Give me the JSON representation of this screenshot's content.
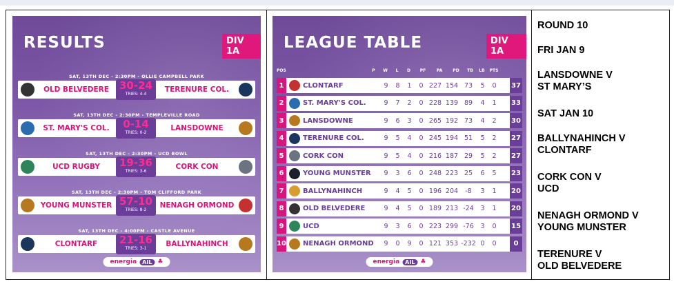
{
  "results": {
    "title": "RESULTS",
    "division": "DIV 1A",
    "matches": [
      {
        "header": "SAT, 13TH DEC - 2:30PM - OLLIE CAMPBELL PARK",
        "home": "OLD BELVEDERE",
        "score": "30-24",
        "tries": "TRIES: 4-4",
        "away": "TERENURE COL."
      },
      {
        "header": "SAT, 13TH DEC - 2:30PM - TEMPLEVILLE ROAD",
        "home": "ST. MARY'S COL.",
        "score": "0-14",
        "tries": "TRIES: 0-2",
        "away": "LANSDOWNE"
      },
      {
        "header": "SAT, 13TH DEC - 2:30PM - UCD BOWL",
        "home": "UCD RUGBY",
        "score": "19-36",
        "tries": "TRIES: 3-6",
        "away": "CORK CON"
      },
      {
        "header": "SAT, 13TH DEC - 2:30PM - TOM CLIFFORD PARK",
        "home": "YOUNG MUNSTER",
        "score": "57-10",
        "tries": "TRIES: 8-2",
        "away": "NENAGH ORMOND"
      },
      {
        "header": "SAT, 13TH DEC - 4:00PM - CASTLE AVENUE",
        "home": "CLONTARF",
        "score": "21-16",
        "tries": "TRIES: 3-1",
        "away": "BALLYNAHINCH"
      }
    ],
    "sponsor": {
      "brand": "energia",
      "league": "AIL"
    }
  },
  "league": {
    "title": "LEAGUE TABLE",
    "division": "DIV 1A",
    "headers": [
      "POS",
      "P",
      "W",
      "L",
      "D",
      "PF",
      "PA",
      "PD",
      "TB",
      "LB",
      "PTS"
    ],
    "rows": [
      {
        "pos": "1",
        "team": "CLONTARF",
        "p": "9",
        "w": "8",
        "l": "1",
        "d": "0",
        "pf": "227",
        "pa": "154",
        "pd": "73",
        "tb": "5",
        "lb": "0",
        "pts": "37"
      },
      {
        "pos": "2",
        "team": "ST. MARY'S COL.",
        "p": "9",
        "w": "7",
        "l": "2",
        "d": "0",
        "pf": "228",
        "pa": "139",
        "pd": "89",
        "tb": "4",
        "lb": "1",
        "pts": "33"
      },
      {
        "pos": "3",
        "team": "LANSDOWNE",
        "p": "9",
        "w": "6",
        "l": "3",
        "d": "0",
        "pf": "265",
        "pa": "192",
        "pd": "73",
        "tb": "4",
        "lb": "2",
        "pts": "30"
      },
      {
        "pos": "4",
        "team": "TERENURE COL.",
        "p": "9",
        "w": "5",
        "l": "4",
        "d": "0",
        "pf": "245",
        "pa": "194",
        "pd": "51",
        "tb": "5",
        "lb": "2",
        "pts": "27"
      },
      {
        "pos": "5",
        "team": "CORK CON",
        "p": "9",
        "w": "5",
        "l": "4",
        "d": "0",
        "pf": "216",
        "pa": "187",
        "pd": "29",
        "tb": "5",
        "lb": "2",
        "pts": "27"
      },
      {
        "pos": "6",
        "team": "YOUNG MUNSTER",
        "p": "9",
        "w": "3",
        "l": "6",
        "d": "0",
        "pf": "248",
        "pa": "223",
        "pd": "25",
        "tb": "6",
        "lb": "5",
        "pts": "23"
      },
      {
        "pos": "7",
        "team": "BALLYNAHINCH",
        "p": "9",
        "w": "4",
        "l": "5",
        "d": "0",
        "pf": "196",
        "pa": "204",
        "pd": "-8",
        "tb": "3",
        "lb": "1",
        "pts": "20"
      },
      {
        "pos": "8",
        "team": "OLD BELVEDERE",
        "p": "9",
        "w": "4",
        "l": "5",
        "d": "0",
        "pf": "189",
        "pa": "213",
        "pd": "-24",
        "tb": "3",
        "lb": "1",
        "pts": "20"
      },
      {
        "pos": "9",
        "team": "UCD",
        "p": "9",
        "w": "3",
        "l": "6",
        "d": "0",
        "pf": "223",
        "pa": "299",
        "pd": "-76",
        "tb": "3",
        "lb": "0",
        "pts": "15"
      },
      {
        "pos": "10",
        "team": "NENAGH ORMOND",
        "p": "9",
        "w": "0",
        "l": "9",
        "d": "0",
        "pf": "121",
        "pa": "353",
        "pd": "-232",
        "tb": "0",
        "lb": "0",
        "pts": "0"
      }
    ],
    "sponsor": {
      "brand": "energia",
      "league": "AIL"
    }
  },
  "fixtures": [
    {
      "line1": "ROUND 10",
      "line2": ""
    },
    {
      "line1": "FRI JAN 9",
      "line2": ""
    },
    {
      "line1": "LANSDOWNE V",
      "line2": "ST MARY’S"
    },
    {
      "line1": "SAT JAN 10",
      "line2": ""
    },
    {
      "line1": "BALLYNAHINCH V",
      "line2": "CLONTARF"
    },
    {
      "line1": "CORK CON V",
      "line2": "UCD"
    },
    {
      "line1": "NENAGH ORMOND V",
      "line2": "YOUNG MUNSTER"
    },
    {
      "line1": "TERENURE V",
      "line2": "OLD BELVEDERE"
    }
  ],
  "colors": {
    "brand_purple": "#6a3d99",
    "brand_pink": "#d8157a",
    "score_pink": "#ff2d91"
  }
}
